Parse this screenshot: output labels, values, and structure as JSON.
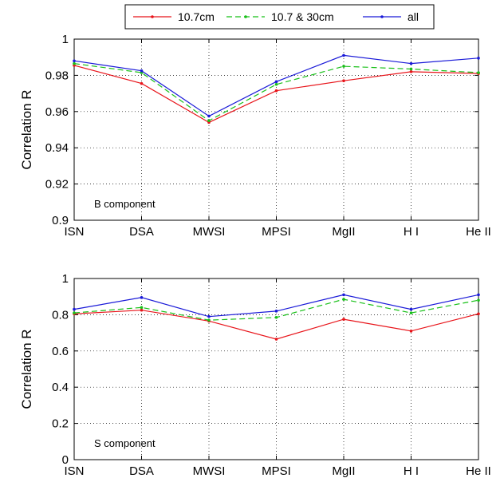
{
  "legend": {
    "entries": [
      {
        "label": "10.7cm",
        "color": "#e8141a",
        "dash": "solid"
      },
      {
        "label": "10.7 & 30cm",
        "color": "#18c018",
        "dash": "dashed"
      },
      {
        "label": "all",
        "color": "#1a1ad8",
        "dash": "solid"
      }
    ]
  },
  "chart_data": [
    {
      "type": "line",
      "categories": [
        "ISN",
        "DSA",
        "MWSI",
        "MPSI",
        "MgII",
        "H I",
        "He II"
      ],
      "ylabel": "Correlation R",
      "ylim": [
        0.9,
        1.0
      ],
      "yticks": [
        0.9,
        0.92,
        0.94,
        0.96,
        0.98,
        1
      ],
      "ytick_labels": [
        "0.9",
        "0.92",
        "0.94",
        "0.96",
        "0.98",
        "1"
      ],
      "annotation": "B component",
      "grid": true,
      "series": [
        {
          "name": "10.7cm",
          "values": [
            0.9855,
            0.9755,
            0.954,
            0.9715,
            0.977,
            0.982,
            0.981
          ]
        },
        {
          "name": "10.7 & 30cm",
          "values": [
            0.9865,
            0.9815,
            0.955,
            0.975,
            0.985,
            0.9835,
            0.9815
          ]
        },
        {
          "name": "all",
          "values": [
            0.988,
            0.9825,
            0.9575,
            0.9765,
            0.991,
            0.9865,
            0.9895
          ]
        }
      ]
    },
    {
      "type": "line",
      "categories": [
        "ISN",
        "DSA",
        "MWSI",
        "MPSI",
        "MgII",
        "H I",
        "He II"
      ],
      "ylabel": "Correlation R",
      "ylim": [
        0,
        1
      ],
      "yticks": [
        0,
        0.2,
        0.4,
        0.6,
        0.8,
        1
      ],
      "ytick_labels": [
        "0",
        "0.2",
        "0.4",
        "0.6",
        "0.8",
        "1"
      ],
      "annotation": "S component",
      "grid": true,
      "series": [
        {
          "name": "10.7cm",
          "values": [
            0.805,
            0.825,
            0.765,
            0.665,
            0.775,
            0.71,
            0.805
          ]
        },
        {
          "name": "10.7 & 30cm",
          "values": [
            0.81,
            0.84,
            0.77,
            0.785,
            0.885,
            0.81,
            0.88
          ]
        },
        {
          "name": "all",
          "values": [
            0.83,
            0.895,
            0.79,
            0.82,
            0.91,
            0.83,
            0.91
          ]
        }
      ]
    }
  ]
}
